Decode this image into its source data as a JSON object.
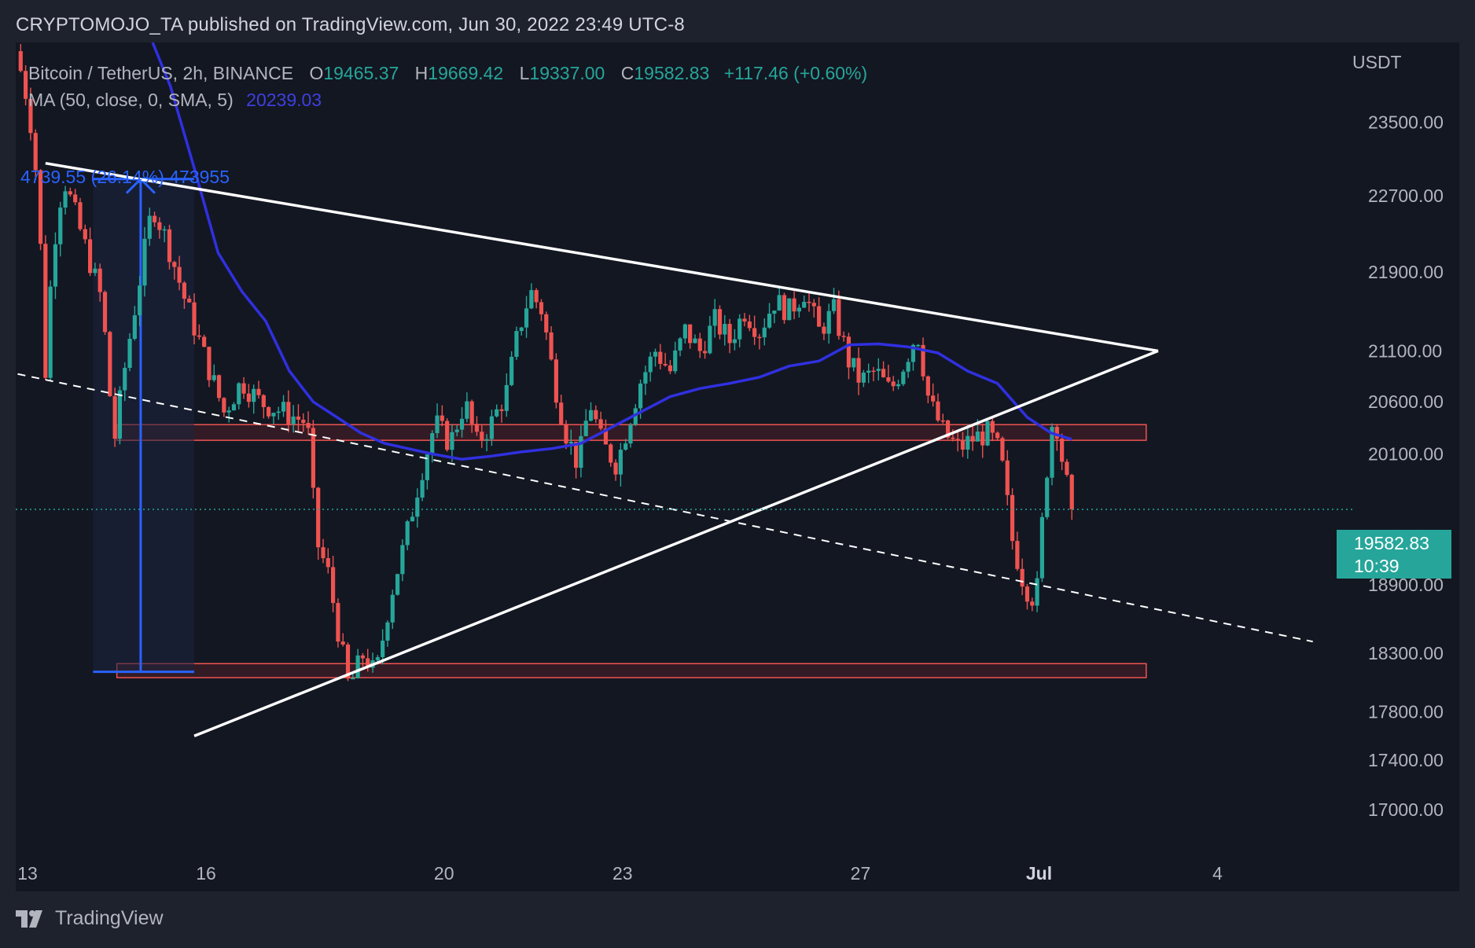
{
  "header": {
    "published_text": "CRYPTOMOJO_TA published on TradingView.com, Jun 30, 2022 23:49 UTC-8"
  },
  "legend": {
    "symbol": "Bitcoin / TetherUS, 2h, BINANCE",
    "open_label": "O",
    "open": "19465.37",
    "high_label": "H",
    "high": "19669.42",
    "low_label": "L",
    "low": "19337.00",
    "close_label": "C",
    "close": "19582.83",
    "change": "+117.46 (+0.60%)",
    "ma_label": "MA (50, close, 0, SMA, 5)",
    "ma_value": "20239.03"
  },
  "currency": "USDT",
  "price_tag": {
    "price": "19582.83",
    "countdown": "10:39"
  },
  "measure_label": "4739.55 (26.14%) 473955",
  "footer": {
    "brand": "TradingView"
  },
  "colors": {
    "up": "#26a69a",
    "down": "#ef5350",
    "ma": "#3030e0",
    "zone_fill": "#3a1c26",
    "zone_stroke": "#ef5350",
    "measure": "#2962ff",
    "background": "#131722",
    "trendline": "#ffffff"
  },
  "chart_data": {
    "type": "candlestick",
    "title": "Bitcoin / TetherUS, 2h, BINANCE",
    "y_scale": "log",
    "y_ticks": [
      "23500.00",
      "22700.00",
      "21900.00",
      "21100.00",
      "20600.00",
      "20100.00",
      "18900.00",
      "18300.00",
      "17800.00",
      "17400.00",
      "17000.00"
    ],
    "y_tick_values": [
      23500,
      22700,
      21900,
      21100,
      20600,
      20100,
      18900,
      18300,
      17800,
      17400,
      17000
    ],
    "x_ticks": [
      "13",
      "16",
      "20",
      "23",
      "27",
      "Jul",
      "4"
    ],
    "x_tick_days": [
      0,
      3,
      7,
      10,
      14,
      17,
      20
    ],
    "ylim": [
      16700,
      24400
    ],
    "xlim_days": [
      0,
      22.2
    ],
    "last_price": 19582.83,
    "path_points": [
      [
        0.0,
        24300
      ],
      [
        0.15,
        23900
      ],
      [
        0.3,
        23300
      ],
      [
        0.4,
        22400
      ],
      [
        0.5,
        20900
      ],
      [
        0.62,
        22100
      ],
      [
        0.8,
        22900
      ],
      [
        1.0,
        22500
      ],
      [
        1.2,
        22100
      ],
      [
        1.45,
        21600
      ],
      [
        1.65,
        20200
      ],
      [
        1.85,
        21000
      ],
      [
        2.05,
        21700
      ],
      [
        2.3,
        22600
      ],
      [
        2.55,
        22200
      ],
      [
        2.85,
        21600
      ],
      [
        3.2,
        21000
      ],
      [
        3.5,
        20500
      ],
      [
        3.8,
        20800
      ],
      [
        4.1,
        20600
      ],
      [
        4.5,
        20500
      ],
      [
        4.9,
        20400
      ],
      [
        5.05,
        19300
      ],
      [
        5.25,
        19000
      ],
      [
        5.45,
        18400
      ],
      [
        5.6,
        18000
      ],
      [
        5.85,
        18300
      ],
      [
        6.05,
        18100
      ],
      [
        6.3,
        18800
      ],
      [
        6.55,
        19300
      ],
      [
        6.8,
        19900
      ],
      [
        7.05,
        20400
      ],
      [
        7.3,
        20200
      ],
      [
        7.55,
        20600
      ],
      [
        7.75,
        20200
      ],
      [
        8.0,
        20400
      ],
      [
        8.25,
        20700
      ],
      [
        8.45,
        21300
      ],
      [
        8.65,
        21700
      ],
      [
        8.85,
        21500
      ],
      [
        9.05,
        20800
      ],
      [
        9.25,
        20300
      ],
      [
        9.45,
        20000
      ],
      [
        9.65,
        20600
      ],
      [
        9.85,
        20200
      ],
      [
        10.1,
        20000
      ],
      [
        10.3,
        20400
      ],
      [
        10.5,
        20800
      ],
      [
        10.75,
        21100
      ],
      [
        11.0,
        20900
      ],
      [
        11.25,
        21300
      ],
      [
        11.5,
        21100
      ],
      [
        11.75,
        21400
      ],
      [
        12.0,
        21200
      ],
      [
        12.25,
        21500
      ],
      [
        12.5,
        21300
      ],
      [
        12.75,
        21600
      ],
      [
        13.0,
        21500
      ],
      [
        13.25,
        21700
      ],
      [
        13.5,
        21300
      ],
      [
        13.75,
        21500
      ],
      [
        14.0,
        21000
      ],
      [
        14.2,
        20800
      ],
      [
        14.45,
        20900
      ],
      [
        14.7,
        20700
      ],
      [
        14.95,
        21000
      ],
      [
        15.15,
        21300
      ],
      [
        15.35,
        20600
      ],
      [
        15.6,
        20300
      ],
      [
        15.85,
        20150
      ],
      [
        16.1,
        20250
      ],
      [
        16.35,
        20300
      ],
      [
        16.55,
        20100
      ],
      [
        16.75,
        19300
      ],
      [
        16.95,
        18900
      ],
      [
        17.15,
        18750
      ],
      [
        17.3,
        19800
      ],
      [
        17.45,
        20550
      ],
      [
        17.6,
        20000
      ],
      [
        17.75,
        19583
      ]
    ],
    "moving_average": {
      "name": "MA (50, close, 0, SMA, 5)",
      "points": [
        [
          2.3,
          24400
        ],
        [
          2.6,
          23900
        ],
        [
          3.0,
          23000
        ],
        [
          3.4,
          22100
        ],
        [
          3.8,
          21700
        ],
        [
          4.2,
          21400
        ],
        [
          4.6,
          20900
        ],
        [
          5.0,
          20600
        ],
        [
          5.4,
          20450
        ],
        [
          5.8,
          20300
        ],
        [
          6.2,
          20200
        ],
        [
          6.6,
          20150
        ],
        [
          7.0,
          20100
        ],
        [
          7.5,
          20050
        ],
        [
          8.0,
          20080
        ],
        [
          8.5,
          20120
        ],
        [
          9.0,
          20150
        ],
        [
          9.5,
          20200
        ],
        [
          10.0,
          20350
        ],
        [
          10.5,
          20500
        ],
        [
          11.0,
          20650
        ],
        [
          11.5,
          20730
        ],
        [
          12.0,
          20780
        ],
        [
          12.5,
          20840
        ],
        [
          13.0,
          20950
        ],
        [
          13.5,
          21000
        ],
        [
          14.0,
          21160
        ],
        [
          14.5,
          21170
        ],
        [
          15.0,
          21140
        ],
        [
          15.5,
          21080
        ],
        [
          16.0,
          20900
        ],
        [
          16.5,
          20780
        ],
        [
          17.0,
          20450
        ],
        [
          17.4,
          20300
        ],
        [
          17.75,
          20239
        ]
      ]
    },
    "drawings": {
      "upper_trendline": {
        "points": [
          [
            0.5,
            23050
          ],
          [
            19.2,
            21100
          ]
        ]
      },
      "lower_trendline": {
        "points": [
          [
            3.0,
            17600
          ],
          [
            19.2,
            21100
          ]
        ]
      },
      "dashed_trendline": {
        "points": [
          [
            -0.2,
            20900
          ],
          [
            21.8,
            18400
          ]
        ]
      },
      "resistance_zone": {
        "x": [
          1.7,
          19.0
        ],
        "y": [
          20230,
          20380
        ]
      },
      "support_zone": {
        "x": [
          1.7,
          19.0
        ],
        "y": [
          18090,
          18210
        ]
      },
      "measure": {
        "x": [
          1.3,
          3.0
        ],
        "x_arrow": 2.1,
        "y": [
          18140,
          22880
        ]
      }
    }
  }
}
